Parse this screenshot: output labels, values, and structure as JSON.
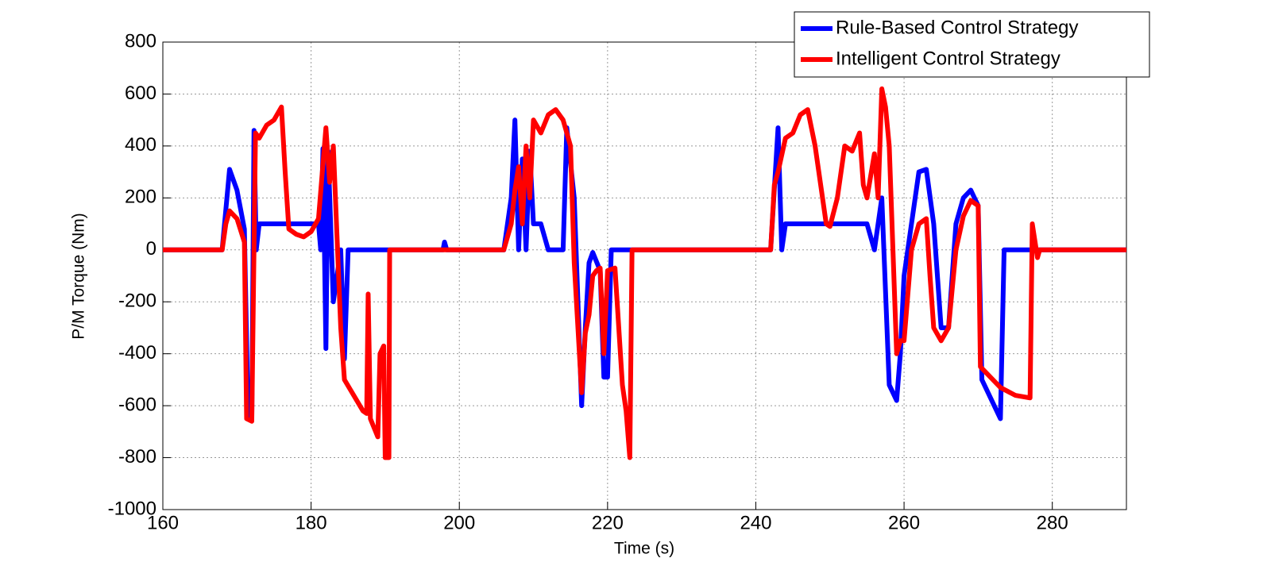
{
  "chart_data": {
    "type": "line",
    "x_label": "Time (s)",
    "y_label": "P/M Torque (Nm)",
    "xlim": [
      160,
      290
    ],
    "xticks": [
      160,
      180,
      200,
      220,
      240,
      260,
      280
    ],
    "ylim": [
      -1000,
      800
    ],
    "yticks": [
      -1000,
      -800,
      -600,
      -400,
      -200,
      0,
      200,
      400,
      600,
      800
    ],
    "grid": true,
    "legend": "upper right",
    "series": [
      {
        "name": "Rule-Based Control Strategy",
        "color": "#0000ff",
        "x": [
          160,
          168,
          169,
          170,
          171,
          171.5,
          172,
          172.3,
          172.6,
          173,
          181,
          181.3,
          181.6,
          182,
          182.3,
          183,
          184,
          184.5,
          185,
          197.8,
          198,
          198.3,
          206,
          207,
          207.5,
          208,
          208.5,
          209,
          209.5,
          210,
          211,
          212,
          214,
          214.5,
          215.5,
          216.5,
          217,
          217.5,
          218,
          219,
          219.5,
          220,
          220.5,
          242,
          243,
          243.5,
          244,
          255,
          256,
          257,
          258,
          259,
          259.5,
          260,
          261,
          262,
          263,
          264,
          265,
          266,
          267,
          268,
          269,
          270,
          270.5,
          273,
          273.5,
          290
        ],
        "values": [
          0,
          0,
          310,
          230,
          80,
          -650,
          -650,
          460,
          0,
          100,
          100,
          0,
          390,
          -380,
          380,
          -200,
          0,
          -420,
          0,
          0,
          30,
          0,
          0,
          200,
          500,
          0,
          350,
          0,
          380,
          100,
          100,
          0,
          0,
          470,
          200,
          -600,
          -300,
          -50,
          -10,
          -80,
          -490,
          -490,
          0,
          0,
          470,
          0,
          100,
          100,
          0,
          200,
          -520,
          -580,
          -400,
          -100,
          100,
          300,
          310,
          100,
          -300,
          -300,
          100,
          200,
          230,
          170,
          -500,
          -650,
          0,
          0
        ]
      },
      {
        "name": "Intelligent Control Strategy",
        "color": "#ff0000",
        "x": [
          160,
          168,
          168.5,
          169,
          170,
          171,
          171.3,
          172,
          172.5,
          173,
          174,
          175,
          176,
          176.5,
          177,
          178,
          179,
          180,
          181,
          182,
          182.5,
          183,
          184,
          184.5,
          187,
          187.5,
          187.7,
          188,
          189,
          189.3,
          189.8,
          190,
          190.5,
          190.6,
          206,
          207,
          207.5,
          208,
          208.5,
          209,
          209.5,
          210,
          211,
          212,
          213,
          214,
          215,
          215.5,
          216.5,
          217,
          217.5,
          218,
          218.5,
          219,
          219.5,
          220,
          221,
          222,
          222.5,
          223,
          223.3,
          242,
          242.5,
          243,
          244,
          245,
          246,
          247,
          248,
          249,
          249.5,
          250,
          251,
          252,
          253,
          254,
          254.5,
          255,
          256,
          256.5,
          257,
          257.5,
          258,
          258.5,
          259,
          259.5,
          260,
          261,
          262,
          263,
          263.5,
          264,
          265,
          266,
          267,
          268,
          269,
          270,
          270.3,
          273,
          275,
          277,
          277.3,
          278,
          278.3,
          290
        ],
        "values": [
          0,
          0,
          100,
          150,
          120,
          30,
          -650,
          -660,
          450,
          430,
          480,
          500,
          550,
          300,
          80,
          60,
          50,
          70,
          120,
          470,
          260,
          400,
          -300,
          -500,
          -620,
          -630,
          -170,
          -650,
          -720,
          -400,
          -370,
          -800,
          -800,
          0,
          0,
          100,
          230,
          320,
          100,
          400,
          200,
          500,
          450,
          520,
          540,
          500,
          400,
          -50,
          -550,
          -320,
          -250,
          -100,
          -80,
          -70,
          -400,
          -80,
          -70,
          -520,
          -620,
          -800,
          0,
          0,
          250,
          300,
          430,
          450,
          520,
          540,
          400,
          200,
          100,
          90,
          200,
          400,
          380,
          450,
          250,
          200,
          370,
          200,
          620,
          550,
          400,
          0,
          -400,
          -350,
          -350,
          0,
          100,
          120,
          -100,
          -300,
          -350,
          -300,
          0,
          130,
          190,
          170,
          -450,
          -530,
          -560,
          -570,
          100,
          -30,
          0,
          0
        ]
      }
    ]
  }
}
